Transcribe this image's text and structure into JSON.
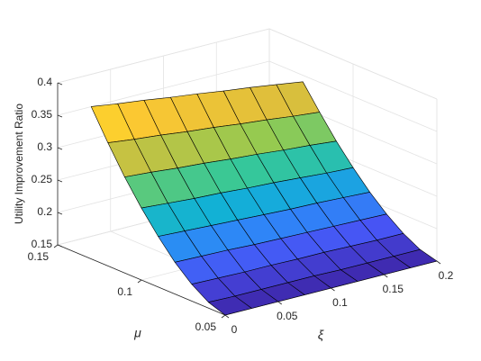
{
  "chart_data": {
    "type": "surface",
    "xlabel": "ξ",
    "ylabel": "μ",
    "zlabel": "Utility Improvement Ratio",
    "x": [
      0,
      0.025,
      0.05,
      0.075,
      0.1,
      0.125,
      0.15,
      0.175,
      0.2
    ],
    "y": [
      0.05,
      0.06,
      0.07,
      0.08,
      0.09,
      0.1,
      0.11,
      0.12,
      0.13
    ],
    "z": [
      [
        0.15,
        0.15,
        0.15,
        0.15,
        0.15,
        0.15,
        0.15,
        0.15,
        0.15
      ],
      [
        0.159,
        0.158,
        0.158,
        0.158,
        0.158,
        0.157,
        0.157,
        0.157,
        0.157
      ],
      [
        0.176,
        0.175,
        0.174,
        0.174,
        0.173,
        0.173,
        0.172,
        0.171,
        0.171
      ],
      [
        0.199,
        0.198,
        0.197,
        0.195,
        0.194,
        0.193,
        0.192,
        0.191,
        0.19
      ],
      [
        0.228,
        0.226,
        0.224,
        0.222,
        0.22,
        0.218,
        0.217,
        0.215,
        0.213
      ],
      [
        0.261,
        0.258,
        0.255,
        0.253,
        0.25,
        0.248,
        0.245,
        0.242,
        0.24
      ],
      [
        0.298,
        0.295,
        0.291,
        0.288,
        0.284,
        0.281,
        0.277,
        0.274,
        0.27
      ],
      [
        0.34,
        0.335,
        0.331,
        0.326,
        0.322,
        0.317,
        0.313,
        0.308,
        0.304
      ],
      [
        0.385,
        0.379,
        0.374,
        0.368,
        0.363,
        0.357,
        0.352,
        0.346,
        0.34
      ]
    ],
    "xlim": [
      0,
      0.2
    ],
    "ylim": [
      0.05,
      0.15
    ],
    "zlim": [
      0.15,
      0.4
    ],
    "xticks": [
      0,
      0.05,
      0.1,
      0.15,
      0.2
    ],
    "yticks": [
      0.05,
      0.1,
      0.15
    ],
    "zticks": [
      0.15,
      0.2,
      0.25,
      0.3,
      0.35,
      0.4
    ],
    "grid": true,
    "colormap": "parula",
    "edgecolor": "#000000"
  }
}
